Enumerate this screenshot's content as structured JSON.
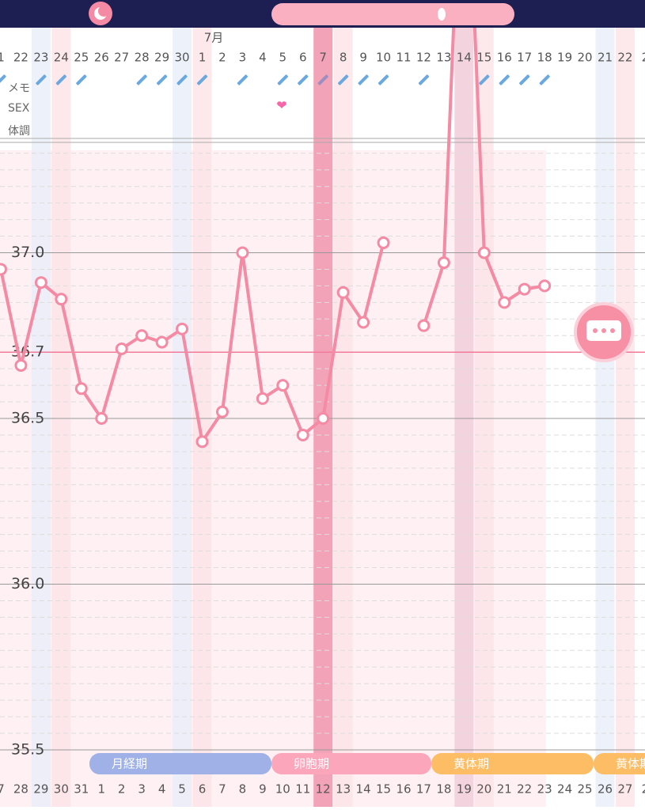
{
  "chart_data": {
    "type": "line",
    "month_label": "7月",
    "row_labels": [
      "メモ",
      "SEX",
      "体調"
    ],
    "categories": [
      "1",
      "22",
      "23",
      "24",
      "25",
      "26",
      "27",
      "28",
      "29",
      "30",
      "1",
      "2",
      "3",
      "4",
      "5",
      "6",
      "7",
      "8",
      "9",
      "10",
      "11",
      "12",
      "13",
      "14",
      "15",
      "16",
      "17",
      "18",
      "19",
      "20",
      "21",
      "22",
      "2"
    ],
    "cycle_days": [
      "7",
      "28",
      "29",
      "30",
      "31",
      "1",
      "2",
      "3",
      "4",
      "5",
      "6",
      "7",
      "8",
      "9",
      "10",
      "11",
      "12",
      "13",
      "14",
      "15",
      "16",
      "17",
      "18",
      "19",
      "20",
      "21",
      "22",
      "23",
      "24",
      "25",
      "26",
      "27",
      "2"
    ],
    "series": [
      {
        "color": "#f48aa3",
        "values": [
          36.95,
          36.66,
          36.91,
          36.86,
          36.59,
          36.5,
          36.71,
          36.75,
          36.73,
          36.77,
          36.43,
          36.52,
          37.0,
          36.56,
          36.6,
          36.45,
          36.5,
          36.88,
          36.79,
          37.03,
          null,
          36.78,
          36.97,
          38.45,
          37.0,
          36.85,
          36.89,
          36.9,
          null,
          null,
          null,
          null,
          null
        ]
      }
    ],
    "ylim": [
      35.5,
      37.5
    ],
    "yticks": [
      {
        "value": 37,
        "label": "37.0"
      },
      {
        "value": 36.5,
        "label": "36.5"
      },
      {
        "value": 36,
        "label": "36.0"
      },
      {
        "value": 35.5,
        "label": "35.5"
      }
    ],
    "minor_grid_step": 0.05,
    "cover_line": {
      "value": 36.7,
      "label": "36.7",
      "color": "#f07a98"
    },
    "phases": [
      {
        "label": "月経期",
        "color": "#9fb1e6"
      },
      {
        "label": "卵胞期",
        "color": "#fba6bb"
      },
      {
        "label": "黄体期",
        "color": "#fdbd64"
      },
      {
        "label": "黄体期",
        "color": "#fdbd64"
      }
    ]
  }
}
